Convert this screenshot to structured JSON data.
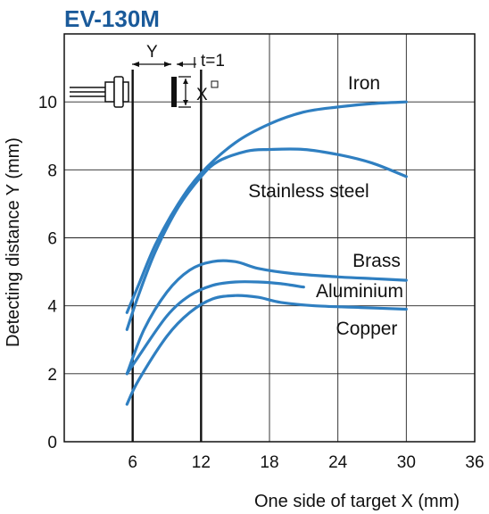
{
  "chart_data": {
    "type": "line",
    "title": "EV-130M",
    "xlabel": "One side of target X (mm)",
    "ylabel": "Detecting distance Y (mm)",
    "xlim": [
      0,
      36
    ],
    "ylim": [
      0,
      12
    ],
    "x_ticks": [
      6,
      12,
      18,
      24,
      30,
      36
    ],
    "y_ticks": [
      0,
      2,
      4,
      6,
      8,
      10
    ],
    "grid": true,
    "series": [
      {
        "name": "Iron",
        "color": "#2f7fc1",
        "points": [
          [
            5.5,
            3.8
          ],
          [
            6.5,
            4.6
          ],
          [
            8,
            5.8
          ],
          [
            10,
            7.0
          ],
          [
            12,
            7.9
          ],
          [
            15,
            8.8
          ],
          [
            18,
            9.35
          ],
          [
            21,
            9.7
          ],
          [
            24,
            9.85
          ],
          [
            27,
            9.95
          ],
          [
            30,
            10.0
          ]
        ]
      },
      {
        "name": "Stainless steel",
        "color": "#2f7fc1",
        "points": [
          [
            5.5,
            3.3
          ],
          [
            6.5,
            4.3
          ],
          [
            8,
            5.6
          ],
          [
            10,
            6.9
          ],
          [
            12,
            7.8
          ],
          [
            13.5,
            8.25
          ],
          [
            16,
            8.55
          ],
          [
            18,
            8.6
          ],
          [
            21,
            8.6
          ],
          [
            24,
            8.45
          ],
          [
            27,
            8.2
          ],
          [
            30,
            7.8
          ]
        ]
      },
      {
        "name": "Brass",
        "color": "#2f7fc1",
        "points": [
          [
            5.5,
            2.0
          ],
          [
            7,
            3.3
          ],
          [
            9,
            4.4
          ],
          [
            11,
            5.05
          ],
          [
            13,
            5.3
          ],
          [
            15,
            5.3
          ],
          [
            17,
            5.1
          ],
          [
            20,
            4.95
          ],
          [
            24,
            4.85
          ],
          [
            27,
            4.8
          ],
          [
            30,
            4.75
          ]
        ]
      },
      {
        "name": "Aluminium",
        "color": "#2f7fc1",
        "points": [
          [
            5.5,
            2.0
          ],
          [
            6.5,
            2.5
          ],
          [
            9,
            3.7
          ],
          [
            11,
            4.3
          ],
          [
            13,
            4.6
          ],
          [
            15,
            4.7
          ],
          [
            17,
            4.7
          ],
          [
            19,
            4.65
          ],
          [
            21,
            4.55
          ]
        ]
      },
      {
        "name": "Copper",
        "color": "#2f7fc1",
        "points": [
          [
            5.5,
            1.1
          ],
          [
            6.5,
            1.8
          ],
          [
            9,
            3.1
          ],
          [
            11,
            3.8
          ],
          [
            13,
            4.2
          ],
          [
            15,
            4.3
          ],
          [
            17,
            4.25
          ],
          [
            19,
            4.1
          ],
          [
            22,
            4.0
          ],
          [
            26,
            3.95
          ],
          [
            30,
            3.9
          ]
        ]
      }
    ],
    "annotations": {
      "y_marker": "Y",
      "thickness": "t=1",
      "x_marker": "X"
    }
  }
}
